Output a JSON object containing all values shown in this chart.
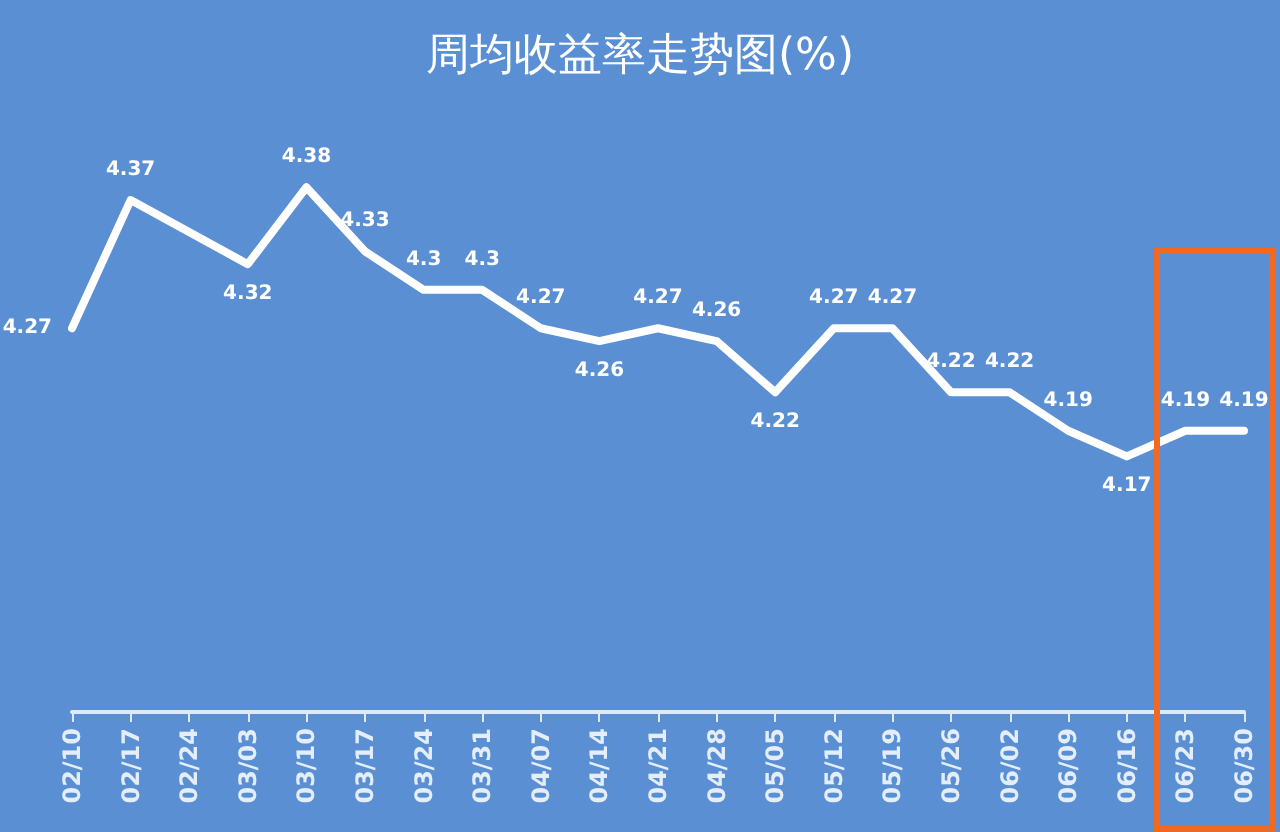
{
  "chart_data": {
    "type": "line",
    "title": "周均收益率走势图(%)",
    "categories": [
      "02/10",
      "02/17",
      "02/24",
      "03/03",
      "03/10",
      "03/17",
      "03/24",
      "03/31",
      "04/07",
      "04/14",
      "04/21",
      "04/28",
      "05/05",
      "05/12",
      "05/19",
      "05/26",
      "06/02",
      "06/09",
      "06/16",
      "06/23",
      "06/30"
    ],
    "series": [
      {
        "color": "#ffffff",
        "values": [
          4.27,
          4.37,
          null,
          4.32,
          4.38,
          4.33,
          4.3,
          4.3,
          4.27,
          4.26,
          4.27,
          4.26,
          4.22,
          4.27,
          4.27,
          4.22,
          4.22,
          4.19,
          4.17,
          4.19,
          4.19
        ]
      }
    ],
    "data_labels": true,
    "grid": false,
    "marker": "none",
    "line_style": "solid",
    "tick_labels": "x"
  }
}
